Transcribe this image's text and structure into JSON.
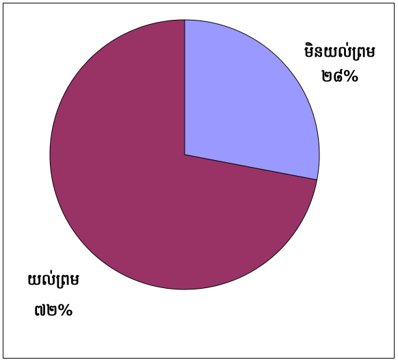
{
  "chart_data": {
    "type": "pie",
    "slices": [
      {
        "name": "មិនយល់ព្រម",
        "value_label": "២៨%",
        "value": 28,
        "color": "#9999FF"
      },
      {
        "name": "យល់ព្រម",
        "value_label": "៧២%",
        "value": 72,
        "color": "#993366"
      }
    ],
    "start_angle_deg": 0,
    "direction": "clockwise",
    "legend": "none",
    "edge_color": "#000000"
  }
}
